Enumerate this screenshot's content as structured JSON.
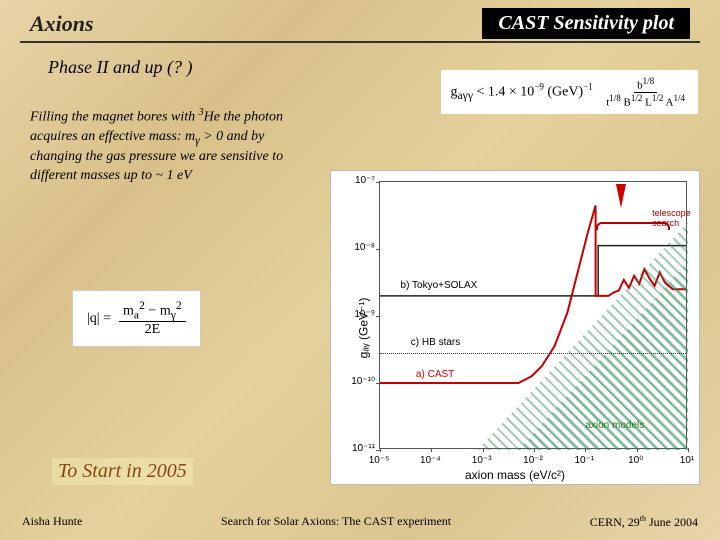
{
  "header": {
    "left_title": "Axions",
    "right_title": "CAST Sensitivity plot"
  },
  "phase_title": "Phase II and up (? )",
  "body_html": "Filling the magnet bores with <sup>3</sup>He the photon acquires an effective mass: m<sub>γ</sub> > 0 and by changing the gas pressure we are sensitive to different masses up to ~ 1 eV",
  "q_formula": {
    "lhs": "|q| =",
    "num_html": "m<sub>a</sub><sup>2</sup> − m<sub>γ</sub><sup>2</sup>",
    "den": "2E"
  },
  "sensitivity_html": "g<sub>aγγ</sub> < 1.4 × 10<sup>−9</sup> (GeV)<sup>−1</sup> &nbsp; <span style='display:inline-flex;flex-direction:column;align-items:center;vertical-align:middle;font-size:11px'><span style='border-bottom:1px solid #000;padding:0 3px'>b<sup>1/8</sup></span><span style='padding:0 3px'>t<sup>1/8</sup> B<sup>1/2</sup> L<sup>1/2</sup> A<sup>1/4</sup></span></span>",
  "chart": {
    "x_label": "axion mass  (eV/c²)",
    "y_label": "gₐᵧ  (GeV⁻¹)",
    "x_log_min": -5,
    "x_log_max": 1,
    "y_log_min": -11,
    "y_log_max": -7,
    "x_ticks": [
      -5,
      -4,
      -3,
      -2,
      -1,
      0,
      1
    ],
    "x_tick_labels": [
      "10⁻⁵",
      "10⁻⁴",
      "10⁻³",
      "10⁻²",
      "10⁻¹",
      "10⁰",
      "10¹"
    ],
    "y_ticks": [
      -11,
      -10,
      -9,
      -8,
      -7
    ],
    "y_tick_labels": [
      "10⁻¹¹",
      "10⁻¹⁰",
      "10⁻⁹",
      "10⁻⁸",
      "10⁻⁷"
    ],
    "regions": {
      "tokyo_solax": {
        "label": "b) Tokyo+SOLAX",
        "y_log": -8.7,
        "color": "#444"
      },
      "hb_stars": {
        "label": "c) HB stars",
        "y_log": -9.55,
        "color": "#444",
        "dotted": true
      },
      "cast": {
        "label": "a) CAST",
        "y_log": -10.0,
        "color": "#c00"
      }
    },
    "hatch_triangles": [
      {
        "x0_log": -3.1,
        "y0_log": -11,
        "x1_log": 1,
        "y1_log": -7.6
      },
      {
        "x0_log": -2.3,
        "y0_log": -11,
        "x1_log": 1,
        "y1_log": -8.2
      }
    ],
    "cast_line_points": [
      [
        -5,
        -10.0
      ],
      [
        -2.3,
        -10.0
      ],
      [
        -2.05,
        -9.9
      ],
      [
        -1.85,
        -9.75
      ],
      [
        -1.6,
        -9.45
      ],
      [
        -1.35,
        -8.95
      ],
      [
        -1.1,
        -8.2
      ],
      [
        -0.95,
        -7.75
      ],
      [
        -0.8,
        -7.35
      ],
      [
        -0.8,
        -8.7
      ],
      [
        -0.55,
        -8.7
      ],
      [
        -0.45,
        -8.65
      ],
      [
        -0.35,
        -8.62
      ],
      [
        -0.25,
        -8.46
      ],
      [
        -0.15,
        -8.58
      ],
      [
        -0.05,
        -8.4
      ],
      [
        0.05,
        -8.52
      ],
      [
        0.15,
        -8.3
      ],
      [
        0.25,
        -8.44
      ],
      [
        0.35,
        -8.55
      ],
      [
        0.45,
        -8.35
      ],
      [
        0.55,
        -8.5
      ],
      [
        0.7,
        -8.6
      ],
      [
        1.0,
        -8.6
      ]
    ],
    "tokyo_step_points": [
      [
        -5,
        -8.7
      ],
      [
        -0.75,
        -8.7
      ],
      [
        -0.75,
        -7.95
      ],
      [
        1,
        -7.95
      ]
    ],
    "telescope_label": "telescope\nsearch",
    "axion_models_label": "axion models",
    "arrow_x_log": -0.3,
    "bracket": {
      "x0_log": -0.8,
      "x1_log": 0.65
    },
    "line_color_cast": "#c40000",
    "line_color_solax": "#222",
    "hatch_color": "#2e8b57",
    "background": "#ffffff"
  },
  "to_start": "To Start in 2005",
  "footer": {
    "left": "Aisha Hunte",
    "center": "Search for Solar Axions: The CAST experiment",
    "right_html": "CERN, 29<sup>th</sup> June 2004"
  }
}
